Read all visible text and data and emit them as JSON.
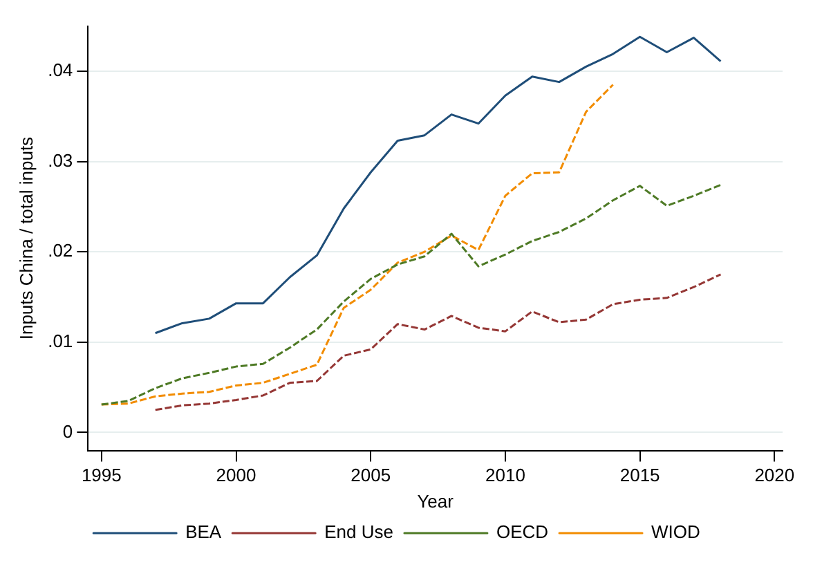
{
  "chart_data": {
    "type": "line",
    "xlabel": "Year",
    "ylabel": "Inputs China / total inputs",
    "xlim": [
      1994.5,
      2020.3
    ],
    "xticks": [
      1995,
      2000,
      2005,
      2010,
      2015,
      2020
    ],
    "ylim": [
      -0.002,
      0.045
    ],
    "yticks": [
      {
        "value": 0,
        "label": "0"
      },
      {
        "value": 0.01,
        "label": ".01"
      },
      {
        "value": 0.02,
        "label": ".02"
      },
      {
        "value": 0.03,
        "label": ".03"
      },
      {
        "value": 0.04,
        "label": ".04"
      }
    ],
    "grid": "y",
    "legend": "bottom",
    "marker": "none",
    "series": [
      {
        "name": "BEA",
        "color": "#1f4e79",
        "line_style": "solid",
        "x": [
          1997,
          1998,
          1999,
          2000,
          2001,
          2002,
          2003,
          2004,
          2005,
          2006,
          2007,
          2008,
          2009,
          2010,
          2011,
          2012,
          2013,
          2014,
          2015,
          2016,
          2017,
          2018
        ],
        "values": [
          0.011,
          0.0121,
          0.0126,
          0.0143,
          0.0143,
          0.0172,
          0.0196,
          0.0248,
          0.0288,
          0.0323,
          0.0329,
          0.0352,
          0.0342,
          0.0373,
          0.0394,
          0.0388,
          0.0405,
          0.0419,
          0.0438,
          0.0421,
          0.0437,
          0.0411
        ]
      },
      {
        "name": "End Use",
        "color": "#953735",
        "line_style": "dashed",
        "x": [
          1997,
          1998,
          1999,
          2000,
          2001,
          2002,
          2003,
          2004,
          2005,
          2006,
          2007,
          2008,
          2009,
          2010,
          2011,
          2012,
          2013,
          2014,
          2015,
          2016,
          2017,
          2018
        ],
        "values": [
          0.0025,
          0.003,
          0.0032,
          0.0036,
          0.0041,
          0.0055,
          0.0057,
          0.0085,
          0.0092,
          0.012,
          0.0114,
          0.0129,
          0.0116,
          0.0112,
          0.0134,
          0.0122,
          0.0125,
          0.0142,
          0.0147,
          0.0149,
          0.0161,
          0.0175
        ]
      },
      {
        "name": "OECD",
        "color": "#4e7a25",
        "line_style": "dashed",
        "x": [
          1995,
          1996,
          1997,
          1998,
          1999,
          2000,
          2001,
          2002,
          2003,
          2004,
          2005,
          2006,
          2007,
          2008,
          2009,
          2010,
          2011,
          2012,
          2013,
          2014,
          2015,
          2016,
          2017,
          2018
        ],
        "values": [
          0.0031,
          0.0035,
          0.0049,
          0.006,
          0.0066,
          0.0073,
          0.0076,
          0.0094,
          0.0114,
          0.0145,
          0.017,
          0.0186,
          0.0195,
          0.022,
          0.0184,
          0.0197,
          0.0212,
          0.0222,
          0.0237,
          0.0257,
          0.0273,
          0.0251,
          0.0262,
          0.0274
        ]
      },
      {
        "name": "WIOD",
        "color": "#f28c00",
        "line_style": "dashed",
        "x": [
          1995,
          1996,
          1997,
          1998,
          1999,
          2000,
          2001,
          2002,
          2003,
          2004,
          2005,
          2006,
          2007,
          2008,
          2009,
          2010,
          2011,
          2012,
          2013,
          2014
        ],
        "values": [
          0.0031,
          0.0032,
          0.004,
          0.0043,
          0.0045,
          0.0052,
          0.0055,
          0.0065,
          0.0075,
          0.0138,
          0.0158,
          0.0188,
          0.02,
          0.0218,
          0.0202,
          0.0262,
          0.0287,
          0.0288,
          0.0355,
          0.0385
        ]
      }
    ]
  }
}
